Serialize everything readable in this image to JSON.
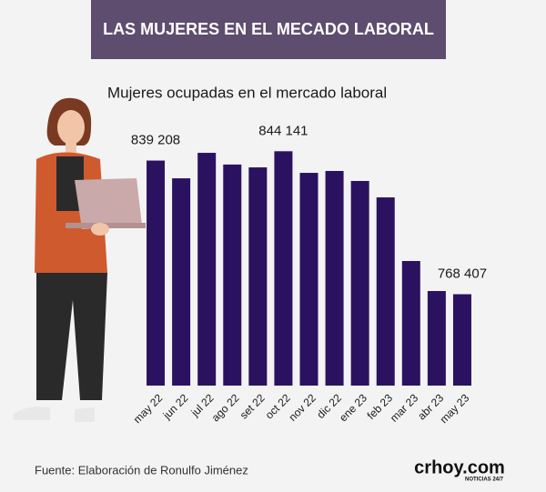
{
  "header": "LAS MUJERES EN EL MECADO LABORAL",
  "chart_data": {
    "type": "bar",
    "title": "Mujeres ocupadas en el mercado laboral",
    "categories": [
      "may 22",
      "jun 22",
      "jul 22",
      "ago 22",
      "set 22",
      "oct 22",
      "nov 22",
      "dic 22",
      "ene 23",
      "feb 23",
      "mar 23",
      "abr 23",
      "may 23"
    ],
    "values": [
      839208,
      829800,
      843300,
      837100,
      835600,
      844141,
      832700,
      833700,
      828400,
      819700,
      786000,
      770100,
      768407
    ],
    "value_labels": [
      "839 208",
      null,
      null,
      null,
      null,
      "844 141",
      null,
      null,
      null,
      null,
      null,
      null,
      "768 407"
    ],
    "color": "#2b1260",
    "ylim": [
      720000,
      852000
    ]
  },
  "source": "Fuente: Elaboración de Ronulfo Jiménez",
  "logo": {
    "name": "crhoy.com",
    "tagline": "NOTICIAS 24/7"
  }
}
